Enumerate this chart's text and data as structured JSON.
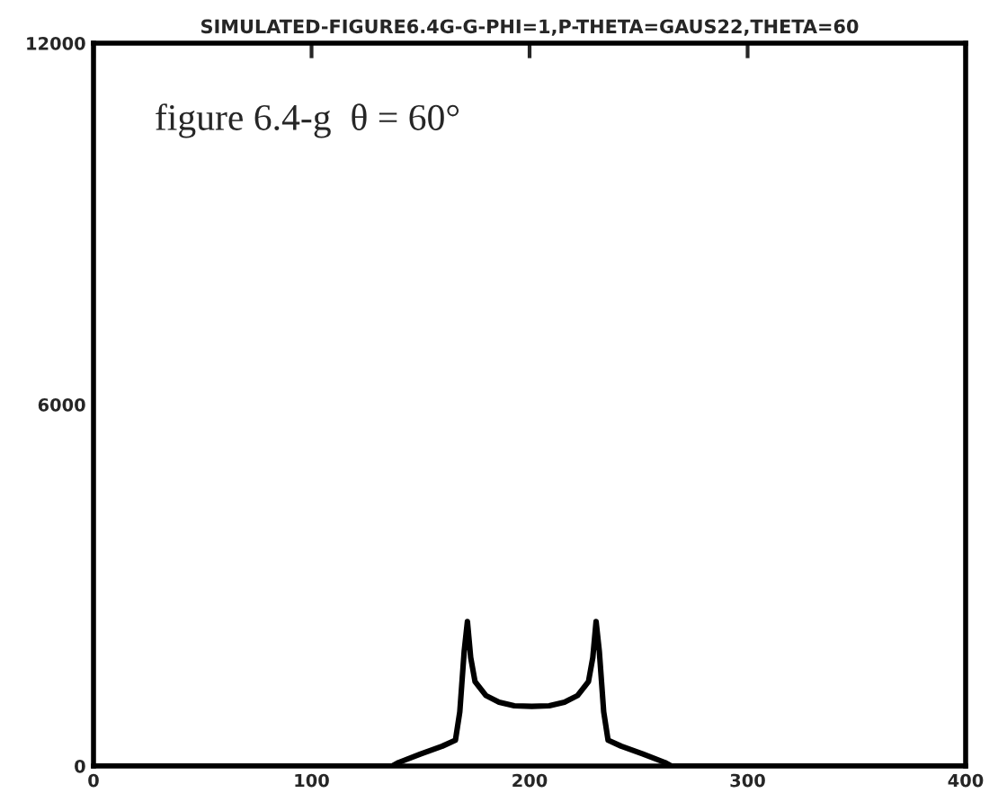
{
  "chart_data": {
    "type": "line",
    "title": "SIMULATED-FIGURE6.4G-G-PHI=1,P-THETA=GAUS22,THETA=60",
    "annotations": [
      "figure 6.4-g  θ = 60°"
    ],
    "x": [
      0,
      137,
      140,
      150,
      160,
      166,
      168,
      170,
      171.5,
      173,
      175,
      180,
      186,
      193,
      201,
      209,
      216,
      222,
      227,
      229,
      230.5,
      232,
      234,
      236,
      242,
      252,
      262,
      265,
      400
    ],
    "series": [
      {
        "color": "#000000",
        "values": [
          0,
          0,
          60,
          200,
          330,
          430,
          900,
          1900,
          2400,
          1800,
          1400,
          1170,
          1060,
          1000,
          990,
          1000,
          1060,
          1170,
          1400,
          1800,
          2400,
          1900,
          900,
          430,
          330,
          200,
          60,
          0,
          0
        ]
      }
    ],
    "xlim": [
      0,
      400
    ],
    "xticks": [
      0,
      100,
      200,
      300,
      400
    ],
    "ylim": [
      0,
      12000
    ],
    "yticks": [
      0,
      6000,
      12000
    ],
    "line_style": "solid"
  }
}
